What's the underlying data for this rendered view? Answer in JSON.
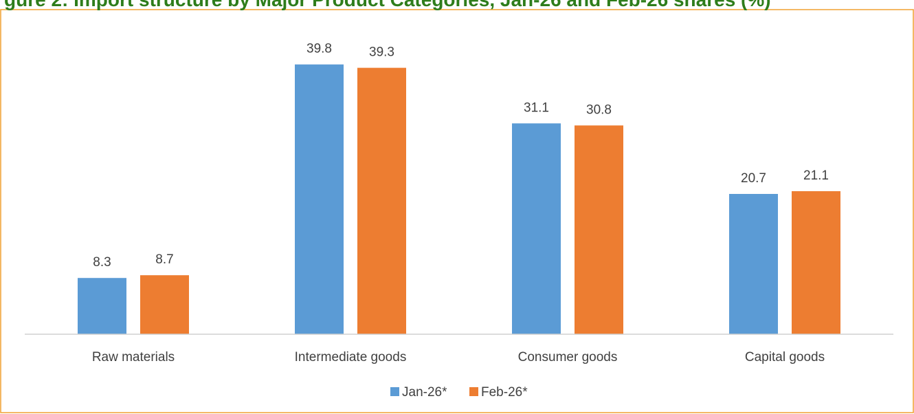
{
  "title": "gure 2: Import structure by Major Product Categories, Jan-26 and Feb-26 shares (%)",
  "chart_data": {
    "type": "bar",
    "title": "gure 2: Import structure by Major Product Categories, Jan-26 and Feb-26 shares (%)",
    "xlabel": "",
    "ylabel": "",
    "ylim": [
      0,
      42
    ],
    "grid": false,
    "legend": "bottom-center",
    "categories": [
      "Raw materials",
      "Intermediate goods",
      "Consumer goods",
      "Capital goods"
    ],
    "series": [
      {
        "name": "Jan-26*",
        "color": "#5B9BD5",
        "values": [
          8.3,
          39.8,
          31.1,
          20.7
        ]
      },
      {
        "name": "Feb-26*",
        "color": "#ED7D31",
        "values": [
          8.7,
          39.3,
          30.8,
          21.1
        ]
      }
    ]
  },
  "colors": {
    "title": "#2E7D1B",
    "frame": "#F0A030",
    "axis": "#D0D0D0",
    "text": "#404040"
  }
}
